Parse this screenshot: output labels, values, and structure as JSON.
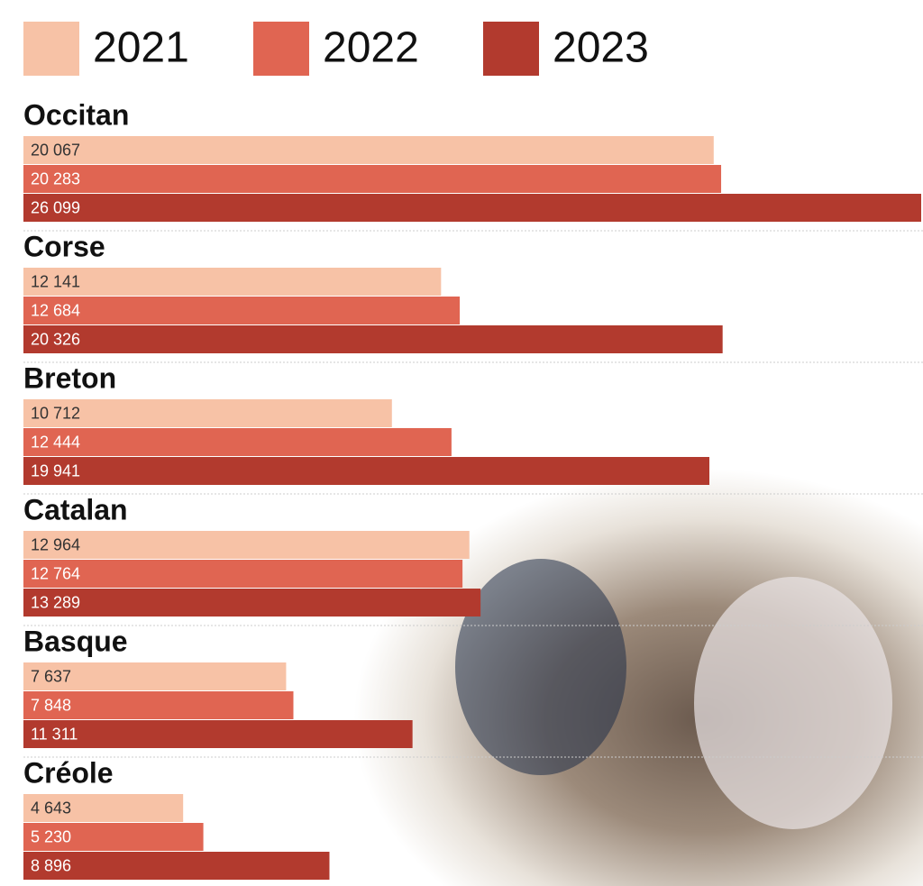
{
  "chart_data": {
    "type": "bar",
    "orientation": "horizontal",
    "categories": [
      "Occitan",
      "Corse",
      "Breton",
      "Catalan",
      "Basque",
      "Créole"
    ],
    "series": [
      {
        "name": "2021",
        "color": "#f7c2a6",
        "values": [
          20067,
          12141,
          10712,
          12964,
          7637,
          4643
        ],
        "value_labels": [
          "20 067",
          "12 141",
          "10 712",
          "12 964",
          "7 637",
          "4 643"
        ]
      },
      {
        "name": "2022",
        "color": "#e06552",
        "values": [
          20283,
          12684,
          12444,
          12764,
          7848,
          5230
        ],
        "value_labels": [
          "20 283",
          "12 684",
          "12 444",
          "12 764",
          "7 848",
          "5 230"
        ]
      },
      {
        "name": "2023",
        "color": "#b23a2e",
        "values": [
          26099,
          20326,
          19941,
          13289,
          11311,
          8896
        ],
        "value_labels": [
          "26 099",
          "20 326",
          "19 941",
          "13 289",
          "11 311",
          "8 896"
        ]
      }
    ]
  }
}
